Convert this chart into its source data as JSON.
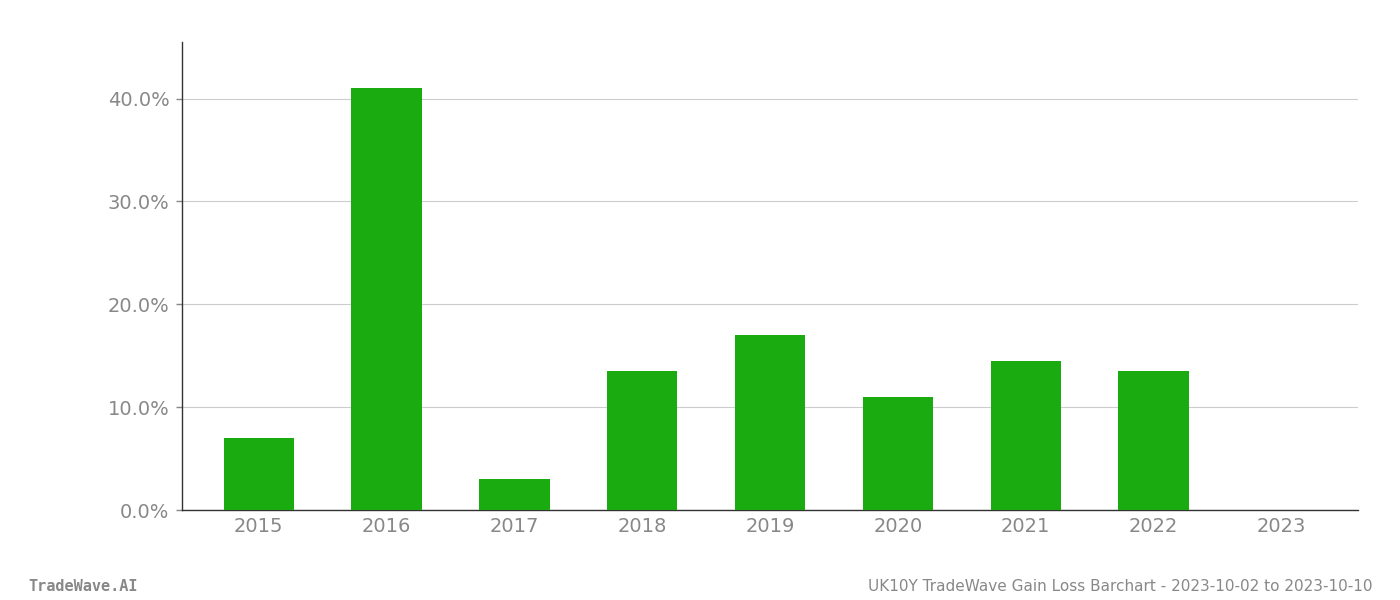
{
  "years": [
    "2015",
    "2016",
    "2017",
    "2018",
    "2019",
    "2020",
    "2021",
    "2022",
    "2023"
  ],
  "values": [
    0.07,
    0.41,
    0.03,
    0.135,
    0.17,
    0.11,
    0.145,
    0.135,
    0.0
  ],
  "bar_color": "#1aab10",
  "background_color": "#ffffff",
  "grid_color": "#cccccc",
  "spine_color": "#333333",
  "tick_color": "#888888",
  "yticks": [
    0.0,
    0.1,
    0.2,
    0.3,
    0.4
  ],
  "ytick_labels": [
    "0.0%",
    "10.0%",
    "20.0%",
    "30.0%",
    "40.0%"
  ],
  "footer_left": "TradeWave.AI",
  "footer_right": "UK10Y TradeWave Gain Loss Barchart - 2023-10-02 to 2023-10-10",
  "footer_color": "#888888",
  "footer_fontsize": 11,
  "tick_fontsize": 14,
  "bar_width": 0.55
}
